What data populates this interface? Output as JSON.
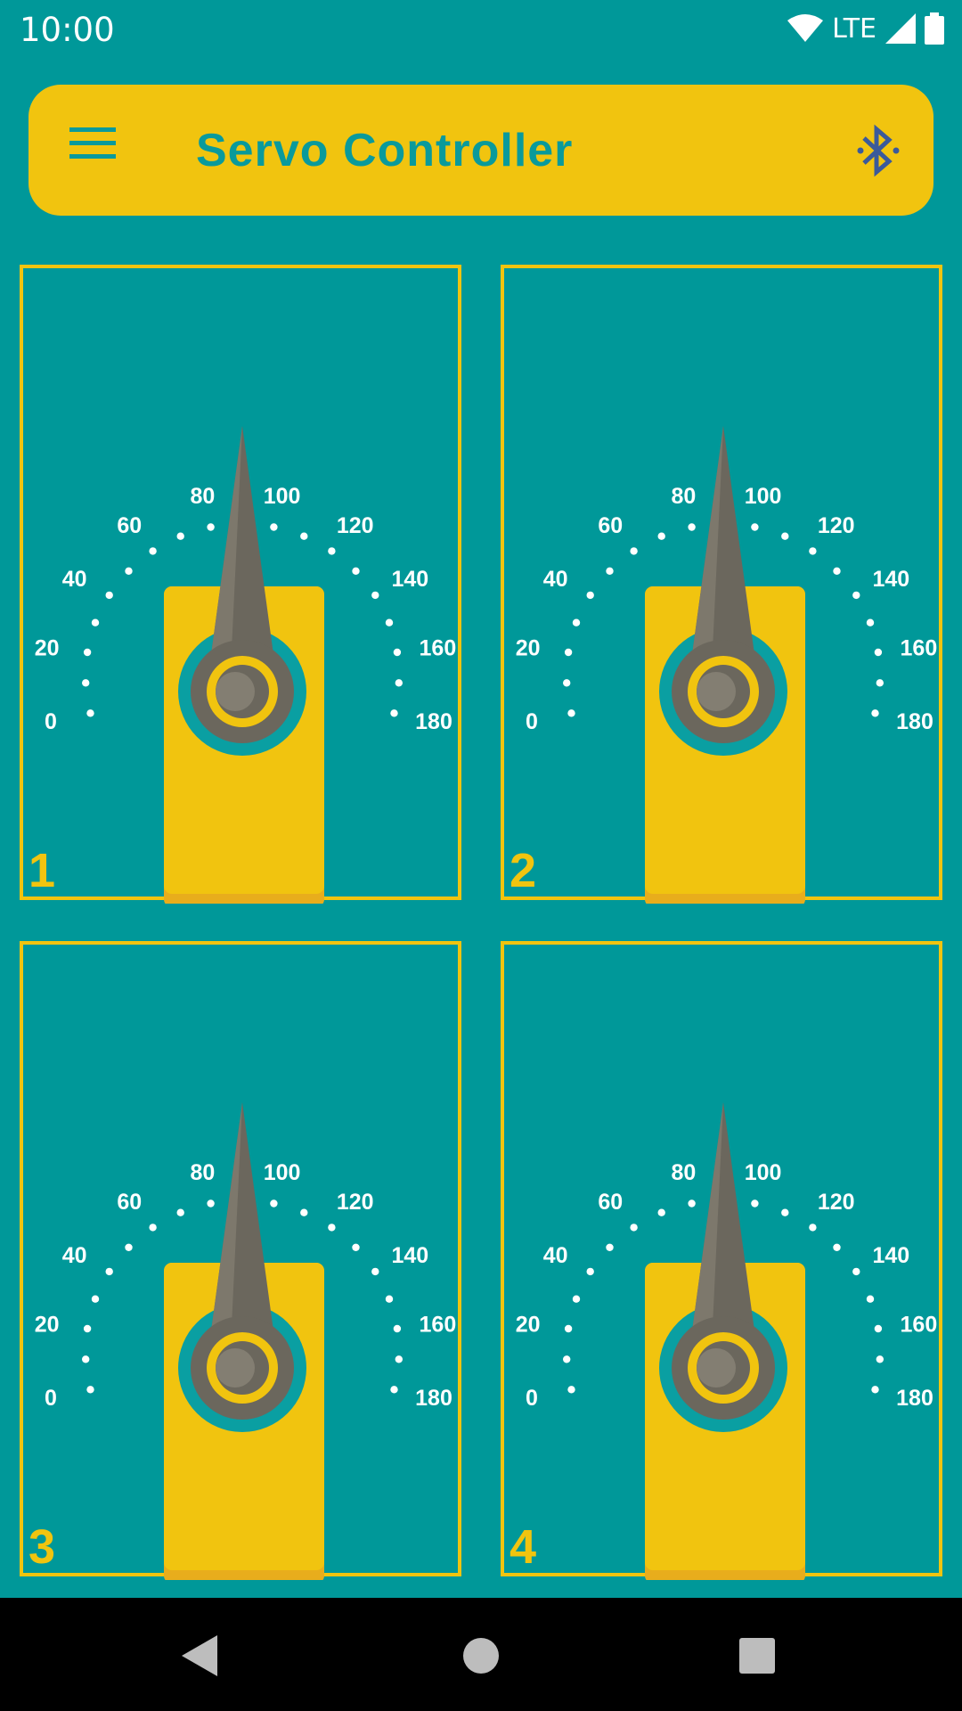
{
  "status_bar": {
    "time": "10:00",
    "network": "LTE",
    "icons": [
      "wifi-icon",
      "signal-icon",
      "battery-icon"
    ]
  },
  "app_bar": {
    "title": "Servo Controller",
    "menu_icon": "hamburger-menu-icon",
    "action_icon": "bluetooth-icon"
  },
  "dial": {
    "scale_labels": [
      "0",
      "20",
      "40",
      "60",
      "80",
      "100",
      "120",
      "140",
      "160",
      "180"
    ]
  },
  "servos": [
    {
      "number": "1"
    },
    {
      "number": "2"
    },
    {
      "number": "3"
    },
    {
      "number": "4"
    }
  ],
  "nav_bar": {
    "icons": [
      "back-icon",
      "home-icon",
      "recents-icon"
    ]
  },
  "colors": {
    "background": "#009899",
    "accent": "#f1c40f",
    "title_text": "#0a9a9b",
    "needle": "#6b675d",
    "bluetooth": "#3b5a9a"
  }
}
